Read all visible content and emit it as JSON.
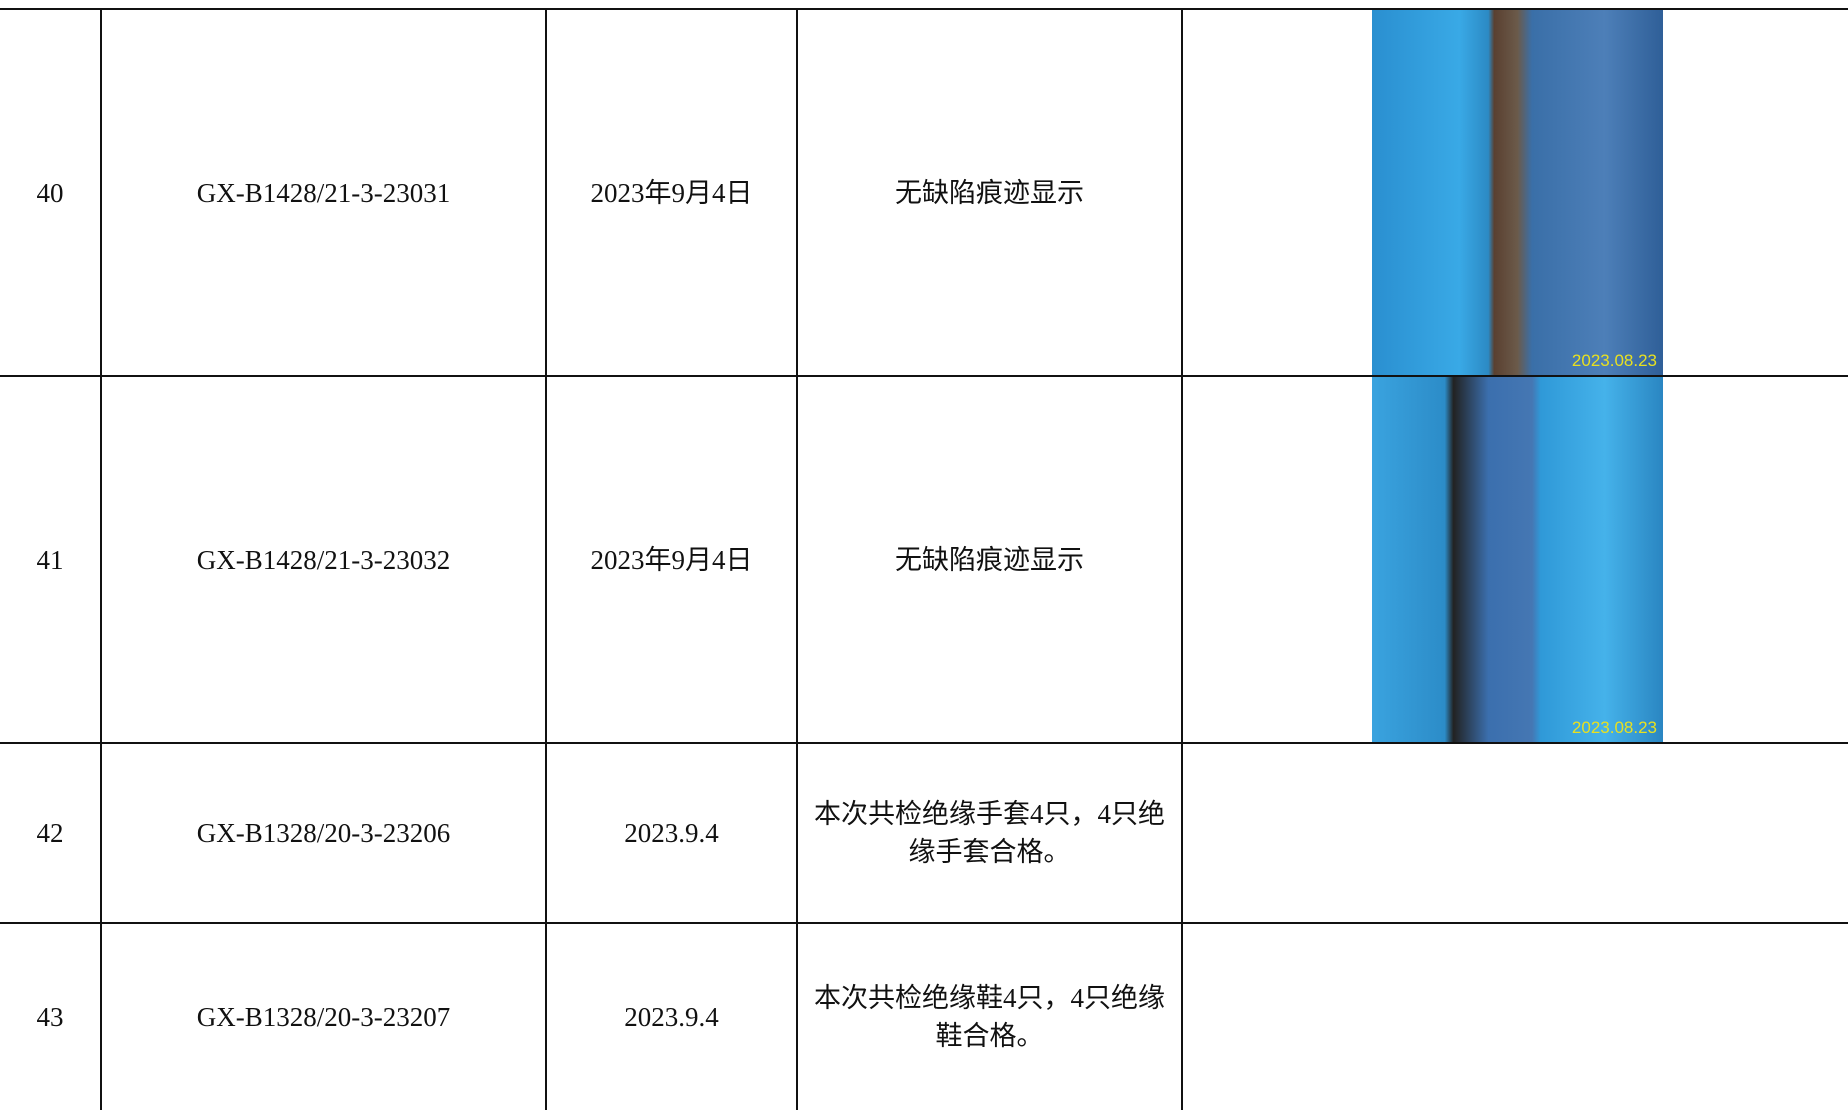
{
  "table": {
    "rows": [
      {
        "no": "40",
        "code": "GX-B1428/21-3-23031",
        "date": "2023年9月4日",
        "result": "无缺陷痕迹显示",
        "photo_stamp": "2023.08.23"
      },
      {
        "no": "41",
        "code": "GX-B1428/21-3-23032",
        "date": "2023年9月4日",
        "result": "无缺陷痕迹显示",
        "photo_stamp": "2023.08.23"
      },
      {
        "no": "42",
        "code": "GX-B1328/20-3-23206",
        "date": "2023.9.4",
        "result": "本次共检绝缘手套4只，4只绝缘手套合格。"
      },
      {
        "no": "43",
        "code": "GX-B1328/20-3-23207",
        "date": "2023.9.4",
        "result": "本次共检绝缘鞋4只，4只绝缘鞋合格。"
      }
    ]
  }
}
